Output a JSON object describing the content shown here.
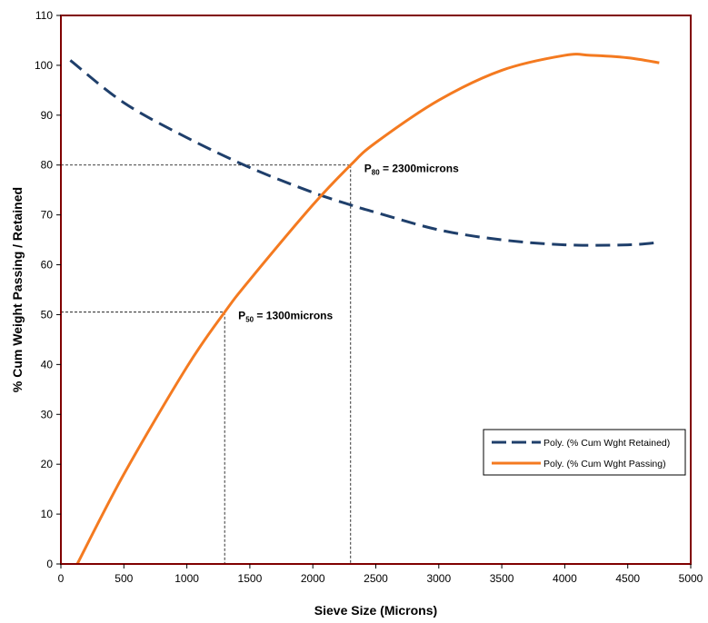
{
  "chart_data": {
    "type": "line",
    "xlabel": "Sieve Size (Microns)",
    "ylabel": "% Cum Weight Passing / Retained",
    "xlim": [
      0,
      5000
    ],
    "ylim": [
      0,
      110
    ],
    "xticks": [
      0,
      500,
      1000,
      1500,
      2000,
      2500,
      3000,
      3500,
      4000,
      4500,
      5000
    ],
    "yticks": [
      0,
      10,
      20,
      30,
      40,
      50,
      60,
      70,
      80,
      90,
      100,
      110
    ],
    "grid": false,
    "legend_position": "bottom-right",
    "series": [
      {
        "name": "Poly. (% Cum Wght Retained)",
        "style": "dashed",
        "color": "#1F3F6B",
        "x": [
          75,
          500,
          1000,
          1500,
          2000,
          2300,
          2500,
          3000,
          3500,
          4000,
          4500,
          4750
        ],
        "y": [
          101,
          92.5,
          85.5,
          79.5,
          74.5,
          72,
          70.5,
          67,
          65,
          64,
          64,
          64.5
        ]
      },
      {
        "name": "Poly. (% Cum Wght Passing)",
        "style": "solid",
        "color": "#F47A20",
        "x": [
          130,
          500,
          1000,
          1300,
          1500,
          2000,
          2300,
          2500,
          3000,
          3500,
          4000,
          4200,
          4500,
          4750
        ],
        "y": [
          0,
          18,
          39.5,
          50.5,
          57,
          72,
          80,
          84.5,
          93,
          99,
          102,
          102,
          101.5,
          100.5
        ]
      }
    ],
    "annotations": [
      {
        "prefix": "P",
        "sub": "80",
        "suffix": " = 2300microns",
        "x": 2300,
        "y": 80
      },
      {
        "prefix": "P",
        "sub": "50",
        "suffix": " = 1300microns",
        "x": 1300,
        "y": 50.5
      }
    ]
  }
}
